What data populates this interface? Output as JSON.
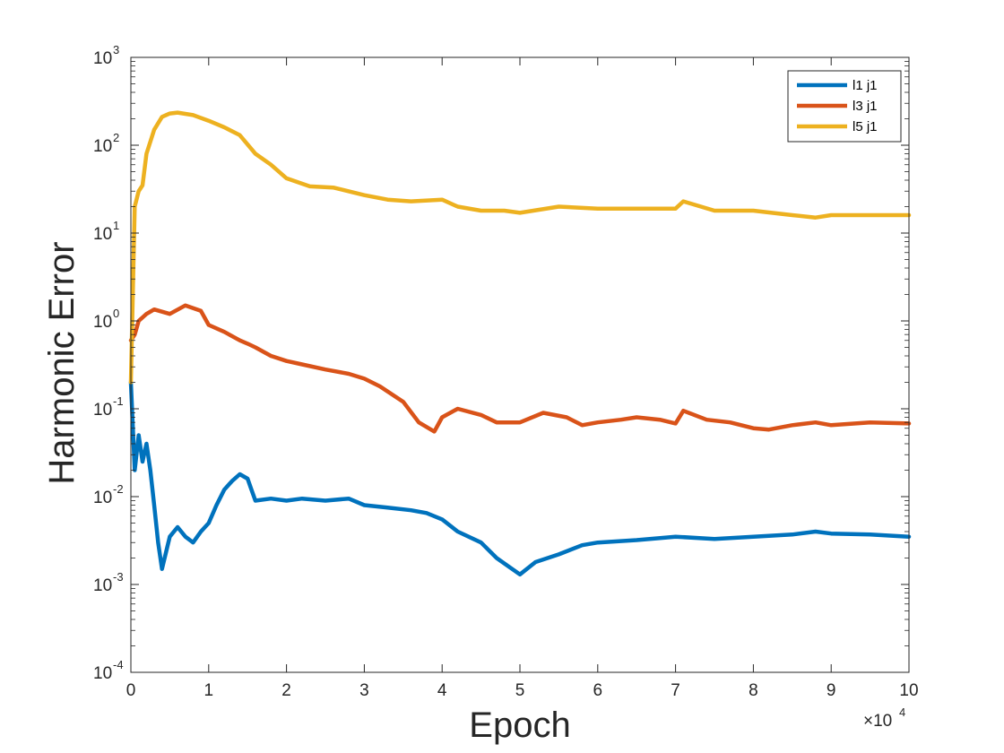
{
  "chart_data": {
    "type": "line",
    "xlabel": "Epoch",
    "ylabel": "Harmonic Error",
    "x_scale_multiplier": {
      "base": "×10",
      "exponent": "4"
    },
    "xlim": [
      0,
      10
    ],
    "ylim": [
      0.0001,
      1000
    ],
    "y_scale": "log",
    "x_ticks": [
      0,
      1,
      2,
      3,
      4,
      5,
      6,
      7,
      8,
      9,
      10
    ],
    "x_tick_labels": [
      "0",
      "1",
      "2",
      "3",
      "4",
      "5",
      "6",
      "7",
      "8",
      "9",
      "10"
    ],
    "y_ticks": [
      {
        "value": 0.0001,
        "base": "10",
        "exp": "-4"
      },
      {
        "value": 0.001,
        "base": "10",
        "exp": "-3"
      },
      {
        "value": 0.01,
        "base": "10",
        "exp": "-2"
      },
      {
        "value": 0.1,
        "base": "10",
        "exp": "-1"
      },
      {
        "value": 1,
        "base": "10",
        "exp": "0"
      },
      {
        "value": 10,
        "base": "10",
        "exp": "1"
      },
      {
        "value": 100,
        "base": "10",
        "exp": "2"
      },
      {
        "value": 1000,
        "base": "10",
        "exp": "3"
      }
    ],
    "grid": false,
    "legend_position": "top-right",
    "series": [
      {
        "name": "l1 j1",
        "color": "#0072BD",
        "x": [
          0,
          0.05,
          0.1,
          0.15,
          0.2,
          0.25,
          0.3,
          0.35,
          0.4,
          0.5,
          0.6,
          0.7,
          0.8,
          0.9,
          1.0,
          1.1,
          1.2,
          1.3,
          1.4,
          1.5,
          1.55,
          1.6,
          1.8,
          2.0,
          2.2,
          2.5,
          2.8,
          3.0,
          3.3,
          3.6,
          3.8,
          4.0,
          4.2,
          4.5,
          4.7,
          4.9,
          5.0,
          5.2,
          5.5,
          5.8,
          6.0,
          6.5,
          7.0,
          7.5,
          8.0,
          8.5,
          8.8,
          9.0,
          9.5,
          10.0
        ],
        "values": [
          0.2,
          0.02,
          0.05,
          0.025,
          0.04,
          0.02,
          0.008,
          0.003,
          0.0015,
          0.0035,
          0.0045,
          0.0035,
          0.003,
          0.004,
          0.005,
          0.008,
          0.012,
          0.015,
          0.018,
          0.016,
          0.012,
          0.009,
          0.0095,
          0.009,
          0.0095,
          0.009,
          0.0095,
          0.008,
          0.0075,
          0.007,
          0.0065,
          0.0055,
          0.004,
          0.003,
          0.002,
          0.0015,
          0.0013,
          0.0018,
          0.0022,
          0.0028,
          0.003,
          0.0032,
          0.0035,
          0.0033,
          0.0035,
          0.0037,
          0.004,
          0.0038,
          0.0037,
          0.0035
        ]
      },
      {
        "name": "l3 j1",
        "color": "#D95319",
        "x": [
          0,
          0.05,
          0.1,
          0.2,
          0.3,
          0.5,
          0.7,
          0.9,
          1.0,
          1.2,
          1.4,
          1.5,
          1.6,
          1.8,
          2.0,
          2.2,
          2.5,
          2.8,
          3.0,
          3.2,
          3.5,
          3.7,
          3.9,
          4.0,
          4.2,
          4.5,
          4.7,
          5.0,
          5.3,
          5.6,
          5.8,
          6.0,
          6.3,
          6.5,
          6.8,
          7.0,
          7.1,
          7.4,
          7.7,
          8.0,
          8.2,
          8.5,
          8.8,
          9.0,
          9.5,
          10.0
        ],
        "values": [
          0.6,
          0.7,
          1.0,
          1.2,
          1.35,
          1.2,
          1.5,
          1.3,
          0.9,
          0.75,
          0.6,
          0.55,
          0.5,
          0.4,
          0.35,
          0.32,
          0.28,
          0.25,
          0.22,
          0.18,
          0.12,
          0.07,
          0.055,
          0.08,
          0.1,
          0.085,
          0.07,
          0.07,
          0.09,
          0.08,
          0.065,
          0.07,
          0.075,
          0.08,
          0.075,
          0.068,
          0.095,
          0.075,
          0.07,
          0.06,
          0.058,
          0.065,
          0.07,
          0.065,
          0.07,
          0.068
        ]
      },
      {
        "name": "l5 j1",
        "color": "#EDB120",
        "x": [
          0,
          0.05,
          0.1,
          0.15,
          0.2,
          0.3,
          0.4,
          0.5,
          0.6,
          0.8,
          1.0,
          1.2,
          1.4,
          1.6,
          1.8,
          2.0,
          2.3,
          2.6,
          3.0,
          3.3,
          3.6,
          4.0,
          4.2,
          4.5,
          4.8,
          5.0,
          5.5,
          6.0,
          6.5,
          7.0,
          7.1,
          7.5,
          8.0,
          8.5,
          8.8,
          9.0,
          9.5,
          10.0
        ],
        "values": [
          0.2,
          20,
          30,
          35,
          80,
          150,
          210,
          230,
          235,
          220,
          190,
          160,
          130,
          80,
          60,
          42,
          34,
          33,
          27,
          24,
          23,
          24,
          20,
          18,
          18,
          17,
          20,
          19,
          19,
          19,
          23,
          18,
          18,
          16,
          15,
          16,
          16,
          16
        ]
      }
    ]
  }
}
